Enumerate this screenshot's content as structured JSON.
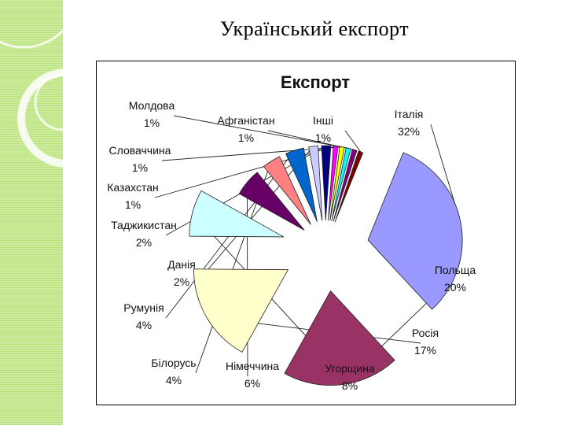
{
  "slide": {
    "title": "Український експорт"
  },
  "chart_data": {
    "type": "pie",
    "title": "Експорт",
    "categories": [
      "Італія",
      "Польща",
      "Росія",
      "Угорщина",
      "Німеччина",
      "Білорусь",
      "Румунія",
      "Данія",
      "Таджикистан",
      "Казахстан",
      "Словаччина",
      "Молдова",
      "Афганістан",
      "Інші"
    ],
    "values": [
      32,
      20,
      17,
      8,
      6,
      4,
      4,
      2,
      2,
      1,
      1,
      1,
      1,
      1
    ],
    "value_labels": [
      "32%",
      "20%",
      "17%",
      "8%",
      "6%",
      "4%",
      "4%",
      "2%",
      "2%",
      "1%",
      "1%",
      "1%",
      "1%",
      "1%"
    ],
    "colors": [
      "#9999ff",
      "#993366",
      "#ffffcc",
      "#ccffff",
      "#660066",
      "#ff8080",
      "#0066cc",
      "#ccccff",
      "#000080",
      "#ff00ff",
      "#ffff00",
      "#00ffff",
      "#800080",
      "#800000"
    ],
    "legend": "none",
    "exploded": true,
    "label_lines": true
  }
}
